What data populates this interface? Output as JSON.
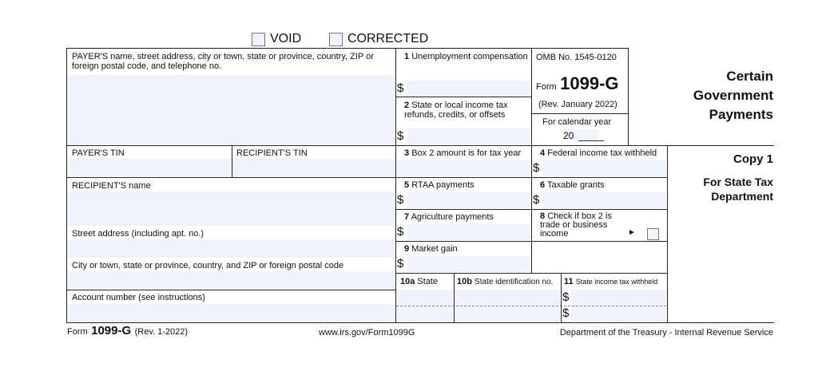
{
  "header": {
    "void_label": "VOID",
    "corrected_label": "CORRECTED"
  },
  "payer": {
    "name_label": "PAYER'S name, street address, city or town, state or province, country, ZIP or foreign postal code, and telephone no.",
    "tin_label": "PAYER'S TIN"
  },
  "recipient": {
    "tin_label": "RECIPIENT'S TIN",
    "name_label": "RECIPIENT'S name",
    "street_label": "Street address (including apt. no.)",
    "city_label": "City or town, state or province, country, and ZIP or foreign postal code",
    "account_label": "Account number (see instructions)"
  },
  "boxes": {
    "b1": {
      "num": "1",
      "label": "Unemployment compensation"
    },
    "b2": {
      "num": "2",
      "label": "State or local income tax refunds, credits, or offsets"
    },
    "b3": {
      "num": "3",
      "label": "Box 2 amount is for tax year"
    },
    "b4": {
      "num": "4",
      "label": "Federal income tax withheld"
    },
    "b5": {
      "num": "5",
      "label": "RTAA payments"
    },
    "b6": {
      "num": "6",
      "label": "Taxable grants"
    },
    "b7": {
      "num": "7",
      "label": "Agriculture payments"
    },
    "b8": {
      "num": "8",
      "label": "Check if box 2 is trade or business income",
      "arrow": "►"
    },
    "b9": {
      "num": "9",
      "label": "Market gain"
    },
    "b10a": {
      "num": "10a",
      "label": "State"
    },
    "b10b": {
      "num": "10b",
      "label": "State identification no."
    },
    "b11": {
      "num": "11",
      "label": "State income tax withheld"
    },
    "currency": "$"
  },
  "omb": {
    "number": "OMB No. 1545-0120",
    "form_prefix": "Form",
    "form_name": "1099-G",
    "rev": "(Rev. January 2022)",
    "calendar_label": "For calendar year",
    "year_prefix": "20"
  },
  "side": {
    "title_lines": [
      "Certain",
      "Government",
      "Payments"
    ],
    "copy": "Copy 1",
    "dest_lines": [
      "For State Tax",
      "Department"
    ]
  },
  "footer": {
    "form_prefix": "Form",
    "form_name": "1099-G",
    "rev": "(Rev. 1-2022)",
    "url": "www.irs.gov/Form1099G",
    "agency": "Department of the Treasury - Internal Revenue Service"
  },
  "colors": {
    "field_fill": "#eef3fc",
    "line": "#222222"
  }
}
